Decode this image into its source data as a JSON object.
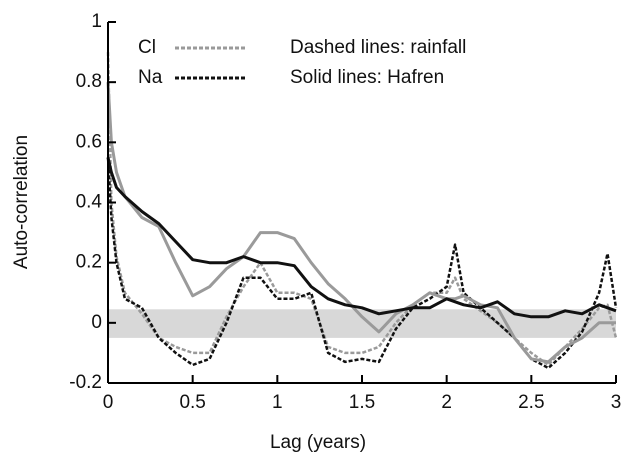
{
  "chart_data": {
    "type": "line",
    "x_label": "Lag (years)",
    "y_label": "Auto-correlation",
    "annotations": [
      "Dashed lines: rainfall",
      "Solid lines: Hafren"
    ],
    "x": [
      0,
      0.02,
      0.05,
      0.1,
      0.2,
      0.3,
      0.4,
      0.5,
      0.6,
      0.7,
      0.8,
      0.9,
      1.0,
      1.1,
      1.2,
      1.3,
      1.4,
      1.5,
      1.6,
      1.7,
      1.8,
      1.9,
      2.0,
      2.05,
      2.1,
      2.2,
      2.3,
      2.4,
      2.5,
      2.6,
      2.7,
      2.8,
      2.9,
      2.95,
      3.0
    ],
    "band": [
      -0.05,
      0.045
    ],
    "band_color": "#d8d8d8",
    "series": [
      {
        "name": "Cl",
        "color": "#9a9a9a",
        "dashed": true,
        "values": [
          0.9,
          0.4,
          0.22,
          0.1,
          0.03,
          -0.05,
          -0.08,
          -0.1,
          -0.1,
          0.02,
          0.12,
          0.2,
          0.1,
          0.1,
          0.08,
          -0.08,
          -0.1,
          -0.1,
          -0.08,
          0.0,
          0.06,
          0.1,
          0.1,
          0.15,
          0.08,
          0.04,
          0.0,
          -0.05,
          -0.1,
          -0.14,
          -0.08,
          -0.02,
          0.05,
          0.06,
          -0.05
        ]
      },
      {
        "name": "Na",
        "color": "#111111",
        "dashed": true,
        "values": [
          0.55,
          0.35,
          0.2,
          0.08,
          0.05,
          -0.05,
          -0.1,
          -0.14,
          -0.12,
          0.0,
          0.15,
          0.15,
          0.08,
          0.08,
          0.1,
          -0.1,
          -0.13,
          -0.12,
          -0.13,
          -0.02,
          0.05,
          0.08,
          0.12,
          0.26,
          0.1,
          0.05,
          0.0,
          -0.05,
          -0.12,
          -0.15,
          -0.1,
          -0.03,
          0.1,
          0.23,
          0.05
        ]
      },
      {
        "color": "#9a9a9a",
        "dashed": false,
        "values": [
          0.8,
          0.6,
          0.5,
          0.42,
          0.35,
          0.32,
          0.2,
          0.09,
          0.12,
          0.18,
          0.22,
          0.3,
          0.3,
          0.28,
          0.2,
          0.13,
          0.08,
          0.02,
          -0.03,
          0.03,
          0.06,
          0.1,
          0.08,
          0.08,
          0.09,
          0.06,
          0.05,
          -0.05,
          -0.12,
          -0.13,
          -0.08,
          -0.05,
          0.0,
          0.0,
          0.0
        ]
      },
      {
        "color": "#111111",
        "dashed": false,
        "values": [
          0.55,
          0.5,
          0.45,
          0.42,
          0.37,
          0.33,
          0.27,
          0.21,
          0.2,
          0.2,
          0.22,
          0.2,
          0.2,
          0.19,
          0.12,
          0.08,
          0.06,
          0.05,
          0.03,
          0.04,
          0.05,
          0.05,
          0.08,
          0.07,
          0.06,
          0.05,
          0.07,
          0.03,
          0.02,
          0.02,
          0.04,
          0.03,
          0.06,
          0.05,
          0.04
        ]
      }
    ],
    "xlim": [
      0,
      3
    ],
    "xticks": [
      0,
      0.5,
      1,
      1.5,
      2,
      2.5,
      3
    ],
    "ylim": [
      -0.2,
      1
    ],
    "yticks": [
      -0.2,
      0,
      0.2,
      0.4,
      0.6,
      0.8,
      1
    ]
  }
}
